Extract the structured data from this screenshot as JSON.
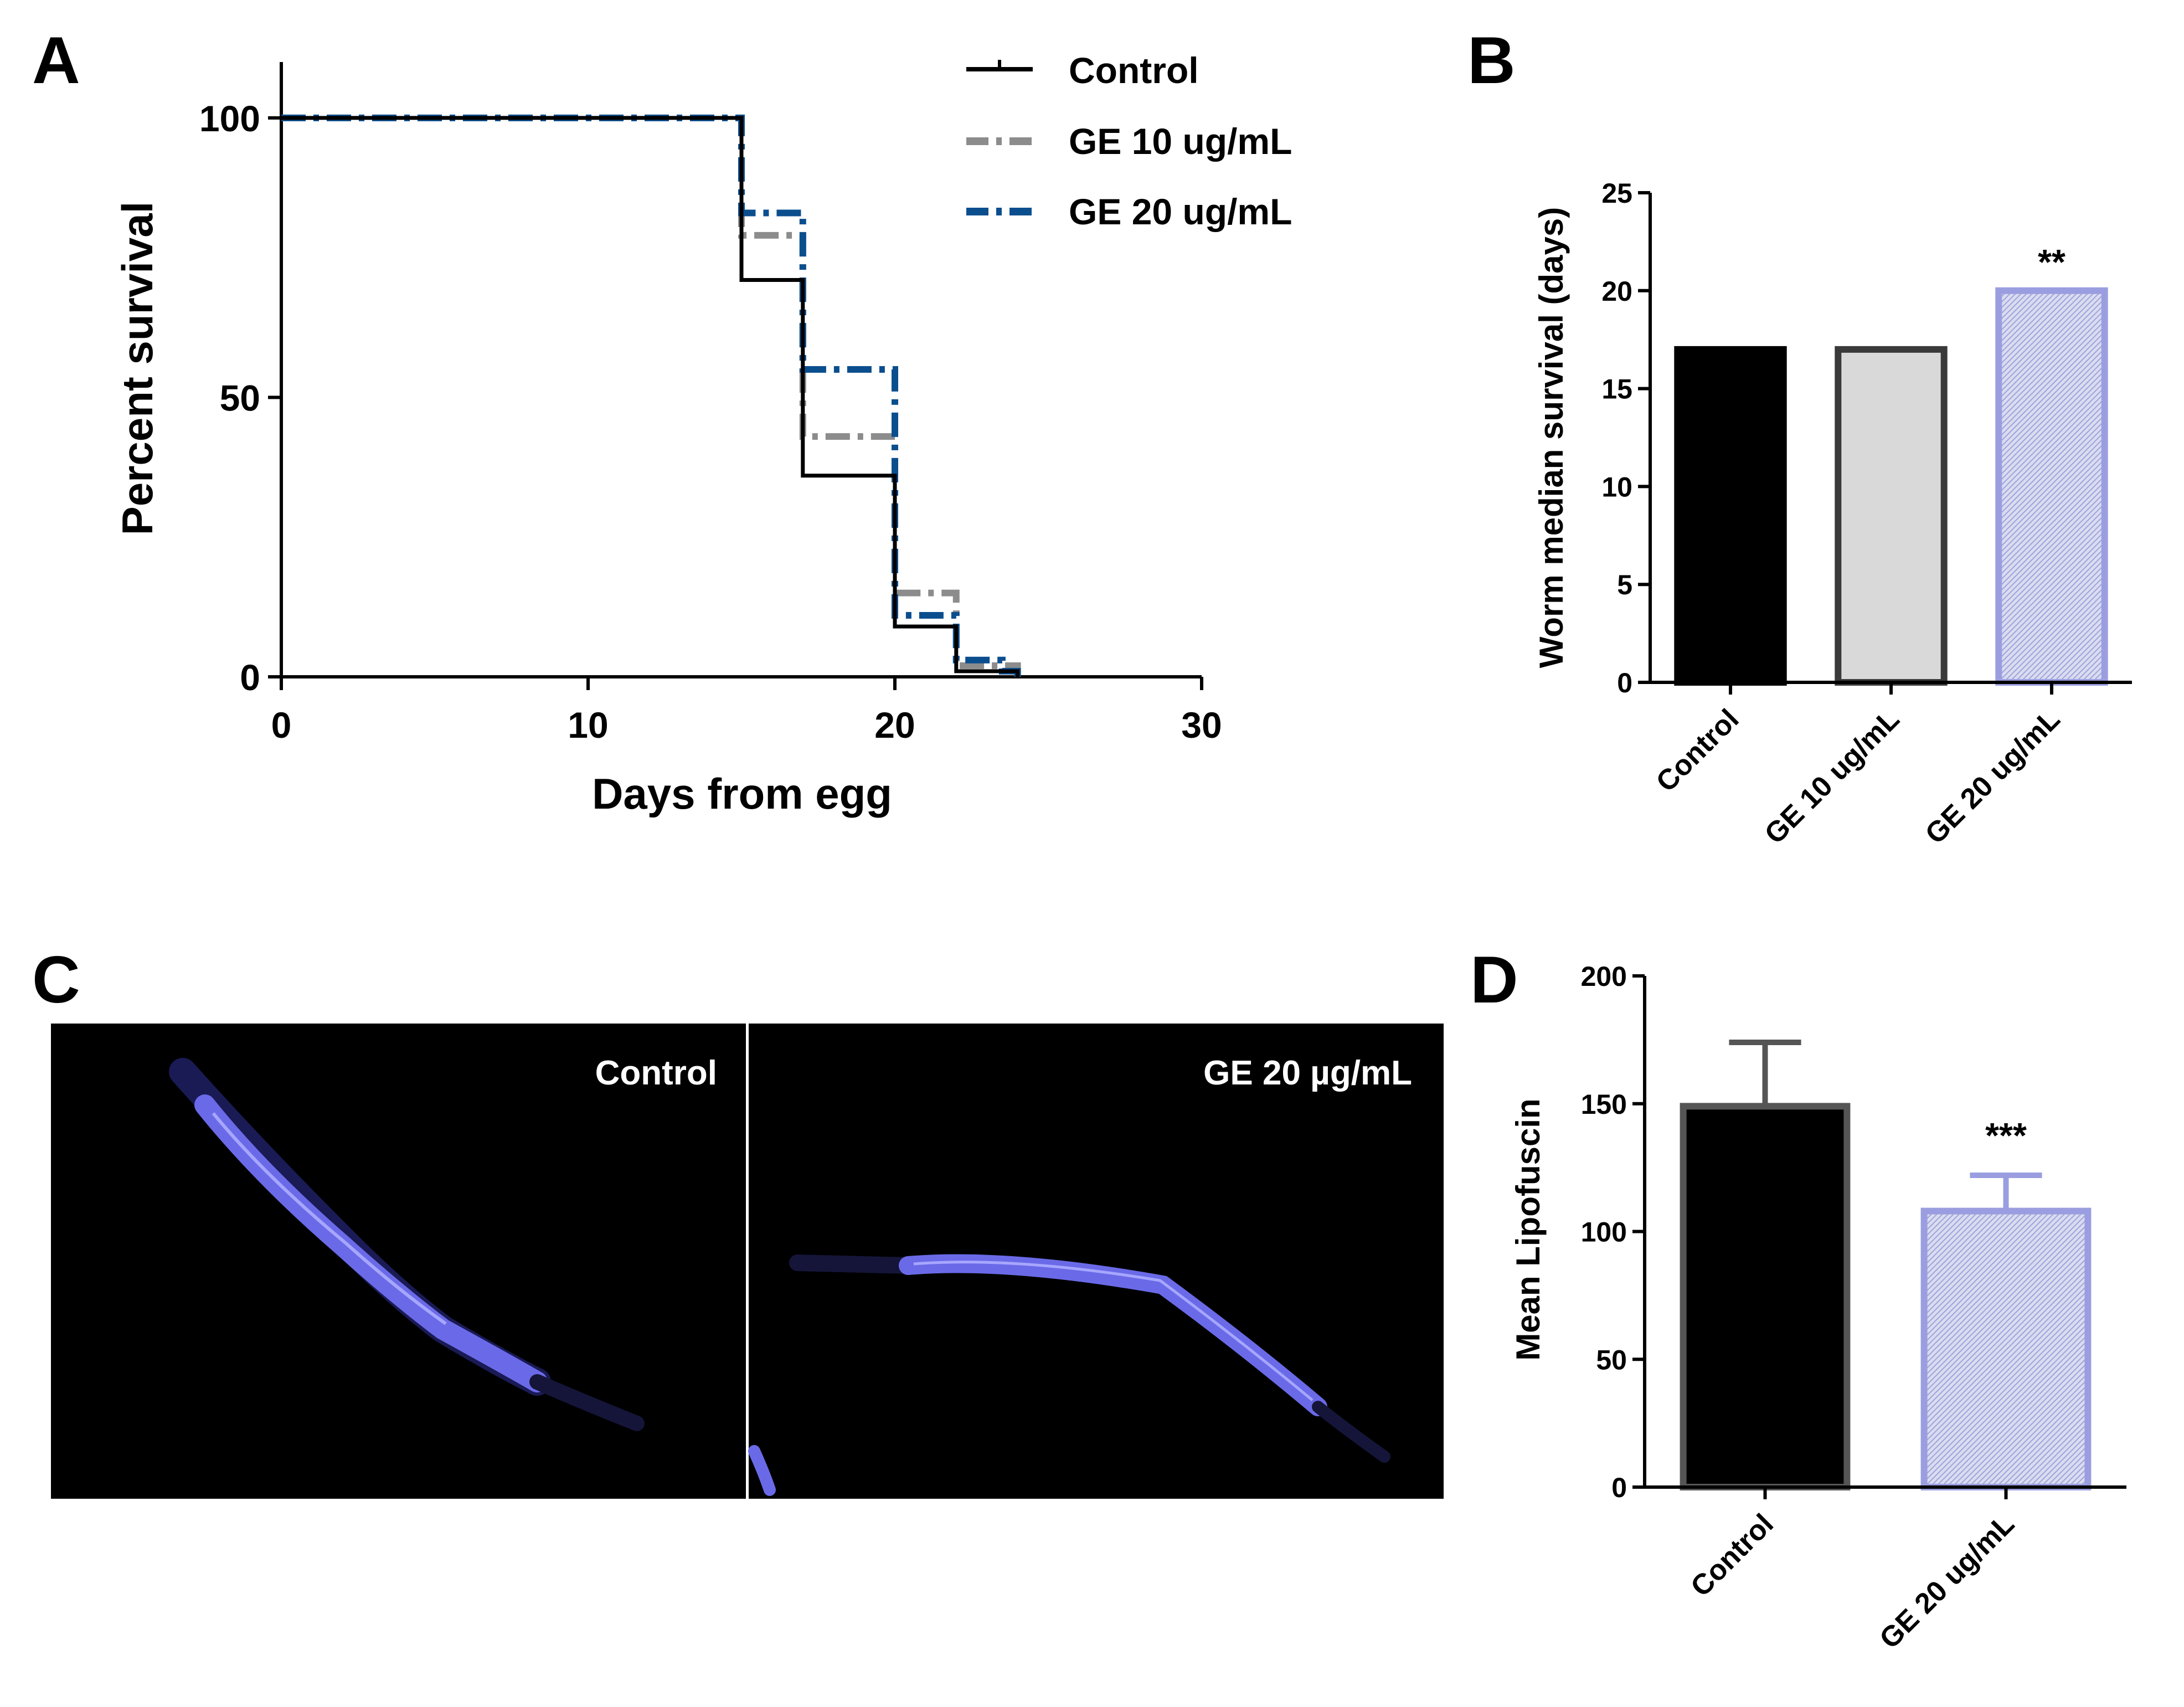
{
  "panels": {
    "A": {
      "letter": "A"
    },
    "B": {
      "letter": "B"
    },
    "C": {
      "letter": "C"
    },
    "D": {
      "letter": "D"
    }
  },
  "chart_data": [
    {
      "panel": "A",
      "type": "line",
      "subtype": "kaplan-meier step",
      "xlabel": "Days from egg",
      "ylabel": "Percent survival",
      "xlim": [
        0,
        30
      ],
      "ylim": [
        0,
        110
      ],
      "xticks": [
        0,
        10,
        20,
        30
      ],
      "yticks": [
        0,
        50,
        100
      ],
      "legend_position": "top-right",
      "series": [
        {
          "name": "Control",
          "color": "#000000",
          "style": "solid",
          "x": [
            0,
            15,
            17,
            20,
            22,
            24
          ],
          "y": [
            100,
            71,
            36,
            9,
            1,
            0
          ]
        },
        {
          "name": "GE 10 ug/mL",
          "color": "#8c8c8c",
          "style": "dash-dot",
          "x": [
            0,
            15,
            17,
            20,
            22,
            24
          ],
          "y": [
            100,
            79,
            43,
            15,
            2,
            0
          ]
        },
        {
          "name": "GE 20 ug/mL",
          "color": "#0b4e8e",
          "style": "dash-dot",
          "x": [
            0,
            15,
            17,
            20,
            22,
            23.5,
            24
          ],
          "y": [
            100,
            83,
            55,
            11,
            3,
            1,
            0
          ]
        }
      ]
    },
    {
      "panel": "B",
      "type": "bar",
      "ylabel": "Worm median survival (days)",
      "categories": [
        "Control",
        "GE 10 ug/mL",
        "GE 20 ug/mL"
      ],
      "values": [
        17,
        17,
        20
      ],
      "ylim": [
        0,
        25
      ],
      "yticks": [
        0,
        5,
        10,
        15,
        20,
        25
      ],
      "significance": [
        "",
        "",
        "**"
      ],
      "colors": {
        "fill": [
          "#000000",
          "#d9d9d9",
          "#d7d9ee"
        ],
        "edge": [
          "#000000",
          "#3a3a3a",
          "#9a9ee0"
        ]
      }
    },
    {
      "panel": "D",
      "type": "bar",
      "ylabel": "Mean Lipofuscin",
      "categories": [
        "Control",
        "GE 20 ug/mL"
      ],
      "values": [
        149,
        108
      ],
      "errors": [
        25,
        14
      ],
      "ylim": [
        0,
        200
      ],
      "yticks": [
        0,
        50,
        100,
        150,
        200
      ],
      "significance": [
        "",
        "***"
      ],
      "colors": {
        "fill": [
          "#000000",
          "#d7d9ee"
        ],
        "edge": [
          "#555555",
          "#9a9ee0"
        ]
      }
    }
  ],
  "imageC": {
    "left_label": "Control",
    "right_label": "GE 20 µg/mL"
  }
}
